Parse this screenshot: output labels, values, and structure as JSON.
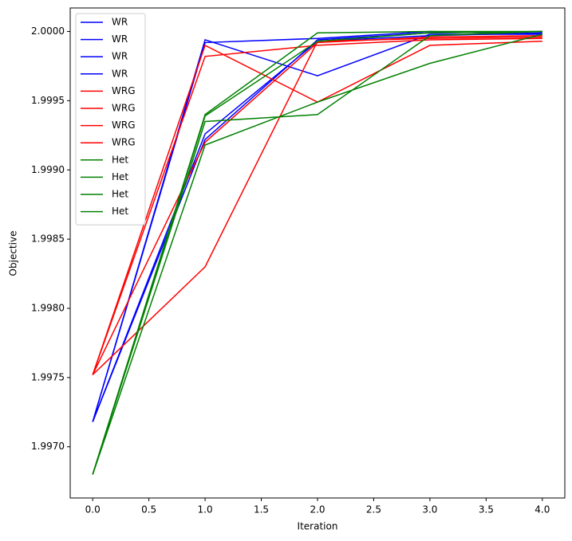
{
  "chart_data": {
    "type": "line",
    "xlabel": "Iteration",
    "ylabel": "Objective",
    "x": [
      0,
      1,
      2,
      3,
      4
    ],
    "xlim": [
      -0.2,
      4.2
    ],
    "xticks": [
      {
        "value": 0,
        "label": "0.0"
      },
      {
        "value": 0.5,
        "label": "0.5"
      },
      {
        "value": 1,
        "label": "1.0"
      },
      {
        "value": 1.5,
        "label": "1.5"
      },
      {
        "value": 2,
        "label": "2.0"
      },
      {
        "value": 2.5,
        "label": "2.5"
      },
      {
        "value": 3,
        "label": "3.0"
      },
      {
        "value": 3.5,
        "label": "3.5"
      },
      {
        "value": 4,
        "label": "4.0"
      }
    ],
    "ylim": [
      1.99663,
      2.00017
    ],
    "yticks": [
      {
        "value": 1.997,
        "label": "1.9970"
      },
      {
        "value": 1.9975,
        "label": "1.9975"
      },
      {
        "value": 1.998,
        "label": "1.9980"
      },
      {
        "value": 1.9985,
        "label": "1.9985"
      },
      {
        "value": 1.999,
        "label": "1.9990"
      },
      {
        "value": 1.9995,
        "label": "1.9995"
      },
      {
        "value": 2,
        "label": "2.0000"
      }
    ],
    "legend": "upper left",
    "series": [
      {
        "name": "WR",
        "color": "#0000ff",
        "values": [
          1.99718,
          1.99994,
          1.99968,
          1.99998,
          1.99998
        ]
      },
      {
        "name": "WR",
        "color": "#0000ff",
        "values": [
          1.99718,
          1.99992,
          1.99995,
          2.0,
          1.99998
        ]
      },
      {
        "name": "WR",
        "color": "#0000ff",
        "values": [
          1.99718,
          1.99926,
          1.99993,
          1.99997,
          1.99999
        ]
      },
      {
        "name": "WR",
        "color": "#0000ff",
        "values": [
          1.99718,
          1.99922,
          1.99994,
          1.99999,
          2.0
        ]
      },
      {
        "name": "WRG",
        "color": "#ff0000",
        "values": [
          1.99752,
          1.99982,
          1.9999,
          1.99994,
          1.99995
        ]
      },
      {
        "name": "WRG",
        "color": "#ff0000",
        "values": [
          1.99752,
          1.9999,
          1.99949,
          1.9999,
          1.99993
        ]
      },
      {
        "name": "WRG",
        "color": "#ff0000",
        "values": [
          1.99752,
          1.9983,
          1.99993,
          1.99995,
          1.99996
        ]
      },
      {
        "name": "WRG",
        "color": "#ff0000",
        "values": [
          1.99752,
          1.9992,
          1.99992,
          1.99996,
          1.99997
        ]
      },
      {
        "name": "Het",
        "color": "#008000",
        "values": [
          1.9968,
          1.9994,
          1.99999,
          2.0,
          2.0
        ]
      },
      {
        "name": "Het",
        "color": "#008000",
        "values": [
          1.9968,
          1.99935,
          1.9994,
          1.99997,
          2.0
        ]
      },
      {
        "name": "Het",
        "color": "#008000",
        "values": [
          1.9968,
          1.99918,
          1.99949,
          1.99977,
          1.99998
        ]
      },
      {
        "name": "Het",
        "color": "#008000",
        "values": [
          1.9968,
          1.99939,
          1.99993,
          1.99999,
          2.0
        ]
      }
    ]
  }
}
